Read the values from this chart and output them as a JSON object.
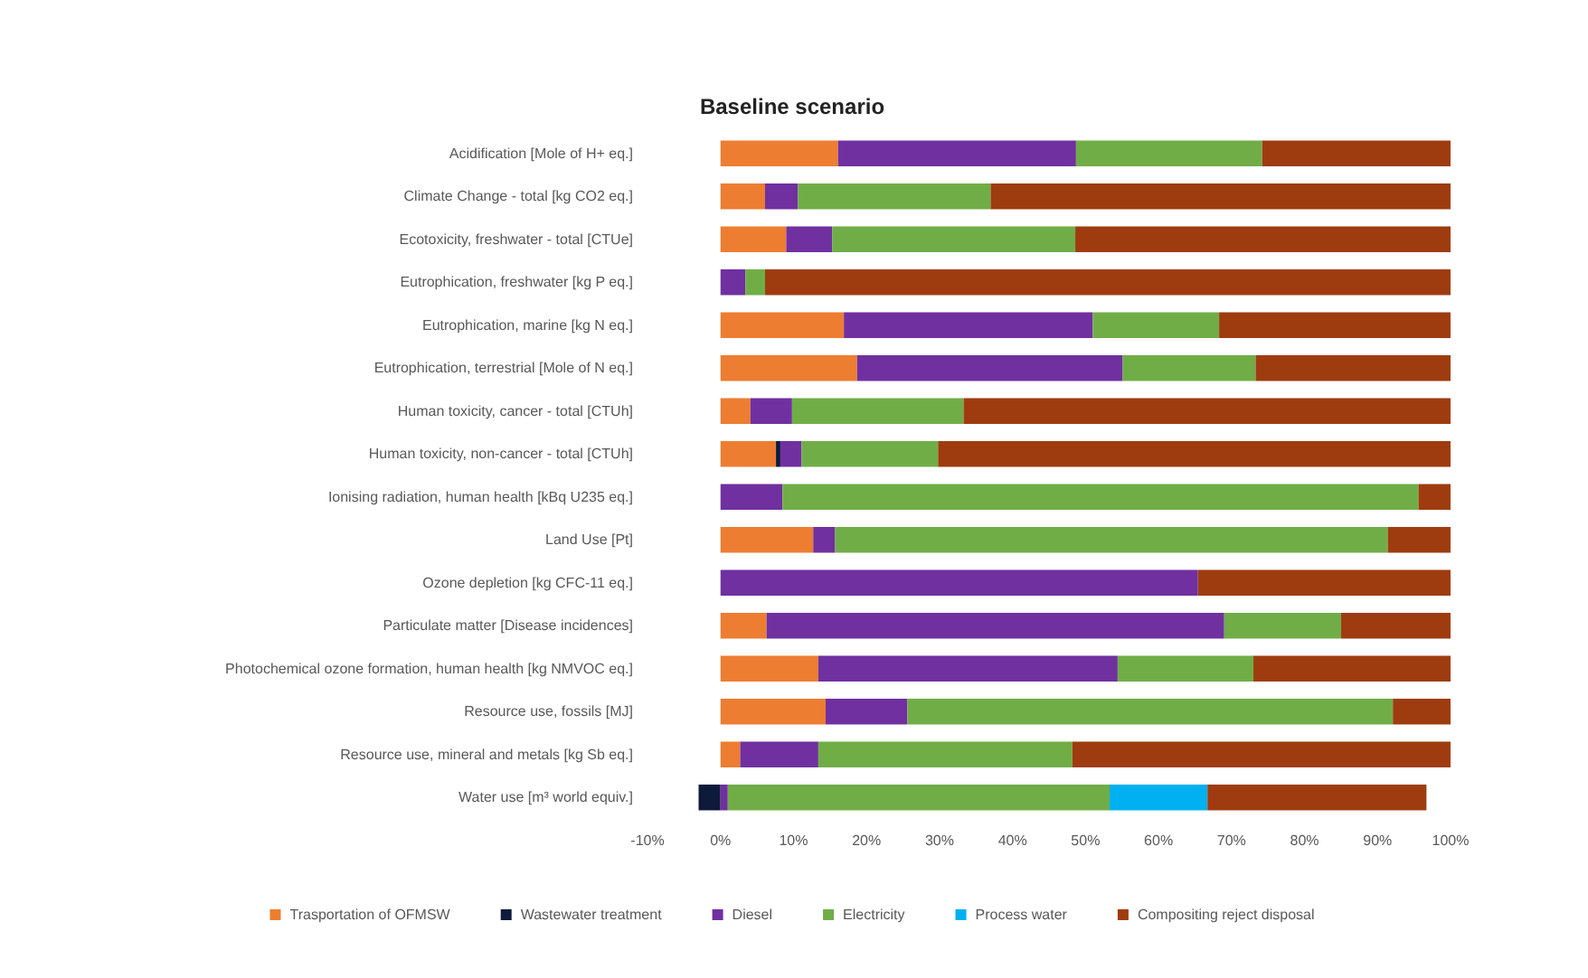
{
  "chart_data": {
    "type": "bar",
    "orientation": "horizontal",
    "stacked": true,
    "title": "Baseline scenario",
    "categories": [
      "Acidification [Mole of H+ eq.]",
      "Climate Change - total [kg CO2 eq.]",
      "Ecotoxicity, freshwater - total [CTUe]",
      "Eutrophication, freshwater [kg P eq.]",
      "Eutrophication, marine [kg N eq.]",
      "Eutrophication, terrestrial [Mole of N eq.]",
      "Human toxicity, cancer - total [CTUh]",
      "Human toxicity, non-cancer - total [CTUh]",
      "Ionising radiation, human health [kBq U235 eq.]",
      "Land Use [Pt]",
      "Ozone depletion [kg CFC-11 eq.]",
      "Particulate matter [Disease incidences]",
      "Photochemical ozone formation, human health [kg NMVOC eq.]",
      "Resource use, fossils [MJ]",
      "Resource use, mineral and metals [kg Sb eq.]",
      "Water use [m³ world equiv.]"
    ],
    "series": [
      {
        "name": "Trasportation of OFMSW",
        "color": "#ed7d31",
        "values": [
          16.1,
          6.1,
          9,
          0,
          16.9,
          18.7,
          4.1,
          7.6,
          0,
          12.7,
          0,
          6.3,
          13.4,
          14.4,
          2.7,
          0
        ]
      },
      {
        "name": "Wastewater treatment",
        "color": "#0d1a3a",
        "values": [
          0,
          0,
          0,
          0,
          0,
          0,
          0,
          0.6,
          0,
          0,
          0,
          0,
          0,
          0,
          0,
          -3
        ]
      },
      {
        "name": "Diesel",
        "color": "#7030a0",
        "values": [
          32.6,
          4.5,
          6.3,
          3.4,
          34.1,
          36.4,
          5.7,
          2.9,
          8.5,
          3,
          65.4,
          62.7,
          41,
          11.2,
          10.7,
          1
        ]
      },
      {
        "name": "Electricity",
        "color": "#70ad47",
        "values": [
          25.5,
          26.4,
          33.3,
          2.7,
          17.3,
          18.2,
          23.5,
          18.7,
          87.1,
          75.7,
          0,
          16,
          18.6,
          66.5,
          34.8,
          52.3
        ]
      },
      {
        "name": "Process water",
        "color": "#00b0f0",
        "values": [
          0,
          0,
          0,
          0,
          0,
          0,
          0,
          0,
          0,
          0,
          0,
          0,
          0,
          0,
          0,
          13.4
        ]
      },
      {
        "name": "Compositing reject disposal",
        "color": "#9e3c10",
        "values": [
          25.8,
          63,
          51.4,
          93.9,
          31.7,
          26.7,
          66.7,
          70.2,
          4.4,
          8.6,
          34.6,
          15,
          27,
          7.9,
          51.8,
          30
        ]
      }
    ],
    "xlim": [
      -10,
      100
    ],
    "xticks": [
      {
        "value": -10,
        "label": "-10%"
      },
      {
        "value": 0,
        "label": "0%"
      },
      {
        "value": 10,
        "label": "10%"
      },
      {
        "value": 20,
        "label": "20%"
      },
      {
        "value": 30,
        "label": "30%"
      },
      {
        "value": 40,
        "label": "40%"
      },
      {
        "value": 50,
        "label": "50%"
      },
      {
        "value": 60,
        "label": "60%"
      },
      {
        "value": 70,
        "label": "70%"
      },
      {
        "value": 80,
        "label": "80%"
      },
      {
        "value": 90,
        "label": "90%"
      },
      {
        "value": 100,
        "label": "100%"
      }
    ],
    "grid": false,
    "legend": "bottom"
  }
}
